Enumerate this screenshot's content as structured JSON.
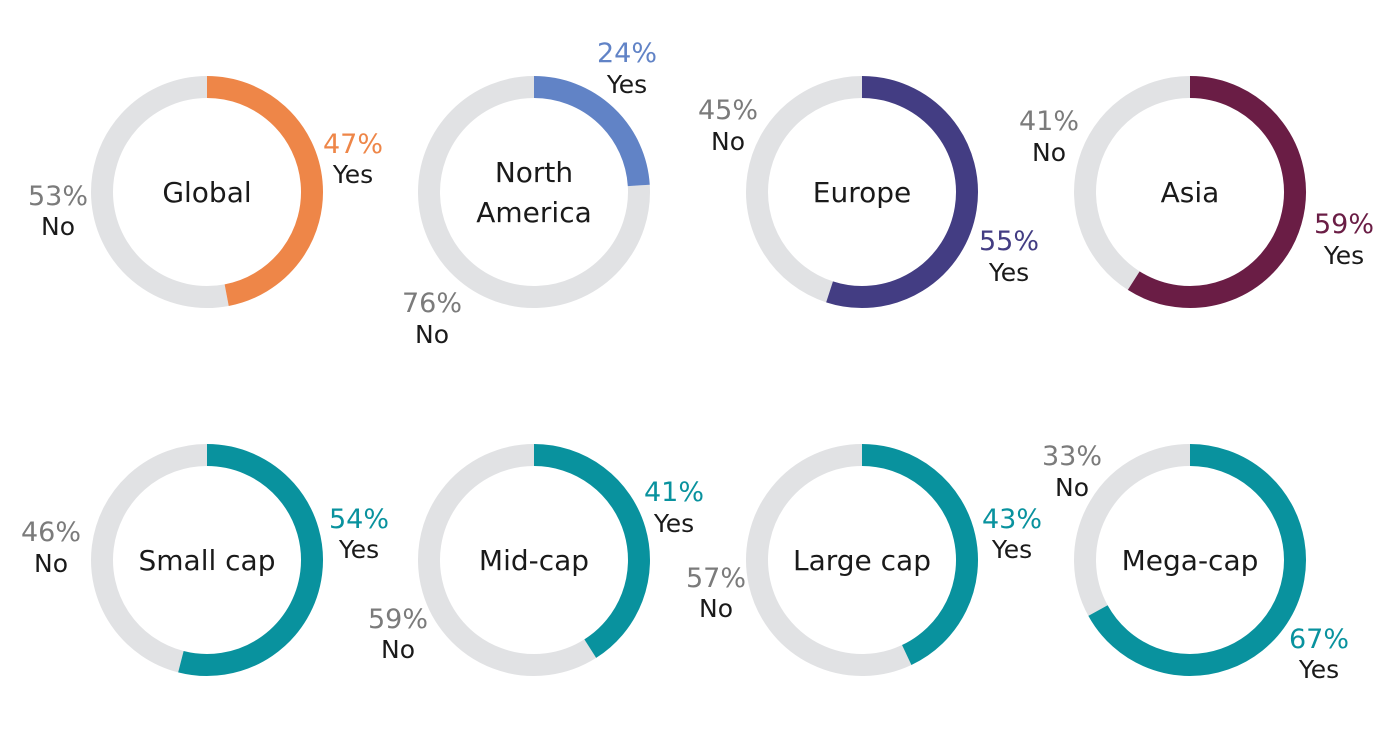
{
  "chart_data": [
    {
      "type": "pie",
      "title": "Global",
      "categories": [
        "Yes",
        "No"
      ],
      "values": [
        47,
        53
      ],
      "value_labels": [
        "47%",
        "53%"
      ],
      "colors": [
        "#EE8648",
        "#E1E2E4"
      ]
    },
    {
      "type": "pie",
      "title": "North America",
      "categories": [
        "Yes",
        "No"
      ],
      "values": [
        24,
        76
      ],
      "value_labels": [
        "24%",
        "76%"
      ],
      "colors": [
        "#6183C6",
        "#E1E2E4"
      ]
    },
    {
      "type": "pie",
      "title": "Europe",
      "categories": [
        "Yes",
        "No"
      ],
      "values": [
        55,
        45
      ],
      "value_labels": [
        "55%",
        "45%"
      ],
      "colors": [
        "#433D83",
        "#E1E2E4"
      ]
    },
    {
      "type": "pie",
      "title": "Asia",
      "categories": [
        "Yes",
        "No"
      ],
      "values": [
        59,
        41
      ],
      "value_labels": [
        "59%",
        "41%"
      ],
      "colors": [
        "#6A1D45",
        "#E1E2E4"
      ]
    },
    {
      "type": "pie",
      "title": "Small cap",
      "categories": [
        "Yes",
        "No"
      ],
      "values": [
        54,
        46
      ],
      "value_labels": [
        "54%",
        "46%"
      ],
      "colors": [
        "#09929E",
        "#E1E2E4"
      ]
    },
    {
      "type": "pie",
      "title": "Mid-cap",
      "categories": [
        "Yes",
        "No"
      ],
      "values": [
        41,
        59
      ],
      "value_labels": [
        "41%",
        "59%"
      ],
      "colors": [
        "#09929E",
        "#E1E2E4"
      ]
    },
    {
      "type": "pie",
      "title": "Large cap",
      "categories": [
        "Yes",
        "No"
      ],
      "values": [
        43,
        57
      ],
      "value_labels": [
        "43%",
        "57%"
      ],
      "colors": [
        "#09929E",
        "#E1E2E4"
      ]
    },
    {
      "type": "pie",
      "title": "Mega-cap",
      "categories": [
        "Yes",
        "No"
      ],
      "values": [
        67,
        33
      ],
      "value_labels": [
        "67%",
        "33%"
      ],
      "colors": [
        "#09929E",
        "#E1E2E4"
      ]
    }
  ],
  "colors": {
    "no_text": "#7B7B7B",
    "word_text": "#1a1a1a"
  }
}
